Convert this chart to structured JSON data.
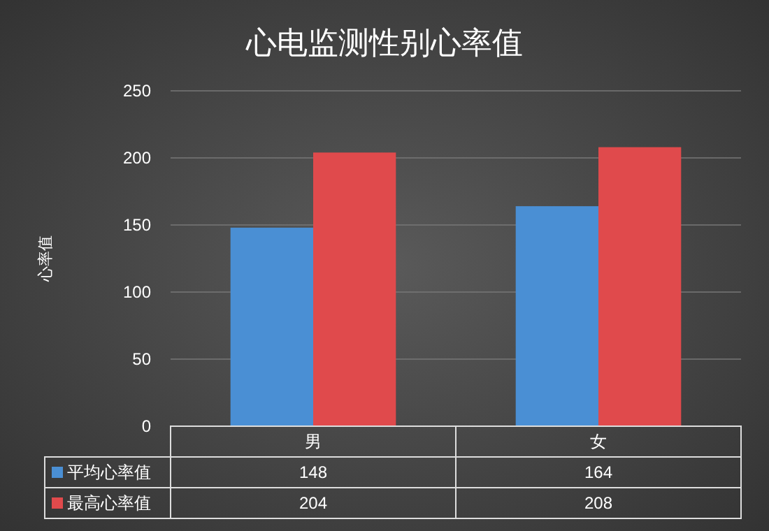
{
  "chart_data": {
    "type": "bar",
    "title": "心电监测性别心率值",
    "ylabel": "心率值",
    "categories": [
      "男",
      "女"
    ],
    "series": [
      {
        "name": "平均心率值",
        "color": "#4a8fd4",
        "values": [
          148,
          164
        ]
      },
      {
        "name": "最高心率值",
        "color": "#e04a4c",
        "values": [
          204,
          208
        ]
      }
    ],
    "ylim": [
      0,
      250
    ],
    "yticks": [
      0,
      50,
      100,
      150,
      200,
      250
    ],
    "grid": "y",
    "data_labels": true,
    "legend": "bottom"
  }
}
